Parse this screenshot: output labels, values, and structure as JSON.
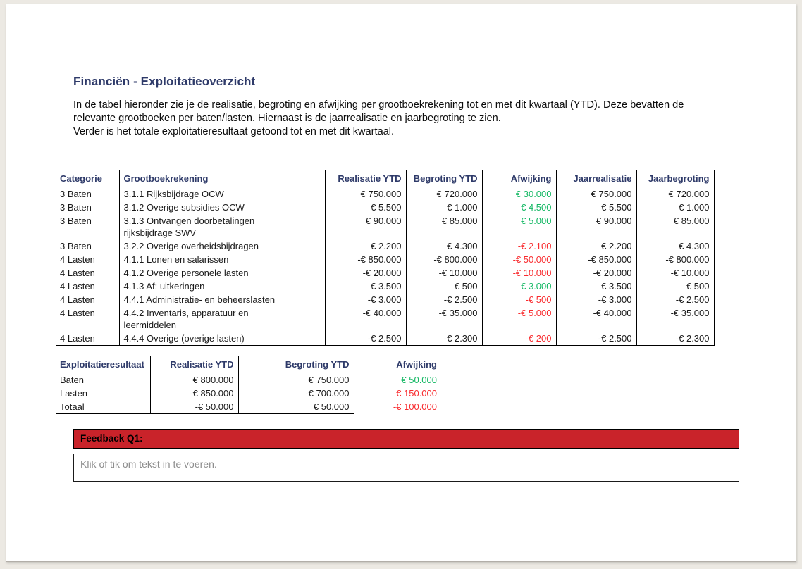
{
  "page": {
    "title": "Financiën - Exploitatieoverzicht",
    "intro_paragraph_1": "In de tabel hieronder zie je de realisatie, begroting en afwijking per grootboekrekening tot en met dit kwartaal (YTD). Deze bevatten de relevante grootboeken per baten/lasten. Hiernaast is de jaarrealisatie en jaarbegroting te zien.",
    "intro_paragraph_2": "Verder is het totale exploitatieresultaat getoond tot en met dit kwartaal."
  },
  "colors": {
    "navy": "#2e3a69",
    "pos": "#14b864",
    "neg": "#f92b2e",
    "banner": "#c9232a"
  },
  "grootboek_table": {
    "headers": [
      "Categorie",
      "Grootboekrekening",
      "Realisatie YTD",
      "Begroting YTD",
      "Afwijking",
      "Jaarrealisatie",
      "Jaarbegroting"
    ],
    "align": [
      "l",
      "l",
      "r",
      "r",
      "r",
      "r",
      "r"
    ],
    "afwijking_col": 4,
    "rows": [
      [
        "3 Baten",
        "3.1.1 Rijksbijdrage OCW",
        "€ 750.000",
        "€ 720.000",
        "€ 30.000",
        "€ 750.000",
        "€ 720.000"
      ],
      [
        "3 Baten",
        "3.1.2 Overige subsidies OCW",
        "€ 5.500",
        "€ 1.000",
        "€ 4.500",
        "€ 5.500",
        "€ 1.000"
      ],
      [
        "3 Baten",
        "3.1.3 Ontvangen doorbetalingen\nrijksbijdrage SWV",
        "€ 90.000",
        "€ 85.000",
        "€ 5.000",
        "€ 90.000",
        "€ 85.000"
      ],
      [
        "3 Baten",
        "3.2.2 Overige overheidsbijdragen",
        "€ 2.200",
        "€ 4.300",
        "-€ 2.100",
        "€ 2.200",
        "€ 4.300"
      ],
      [
        "4 Lasten",
        "4.1.1 Lonen en salarissen",
        "-€ 850.000",
        "-€ 800.000",
        "-€ 50.000",
        "-€ 850.000",
        "-€ 800.000"
      ],
      [
        "4 Lasten",
        "4.1.2 Overige personele lasten",
        "-€ 20.000",
        "-€ 10.000",
        "-€ 10.000",
        "-€ 20.000",
        "-€ 10.000"
      ],
      [
        "4 Lasten",
        "4.1.3 Af: uitkeringen",
        "€ 3.500",
        "€ 500",
        "€ 3.000",
        "€ 3.500",
        "€ 500"
      ],
      [
        "4 Lasten",
        "4.4.1 Administratie- en beheerslasten",
        "-€ 3.000",
        "-€ 2.500",
        "-€ 500",
        "-€ 3.000",
        "-€ 2.500"
      ],
      [
        "4 Lasten",
        "4.4.2 Inventaris, apparatuur en\nleermiddelen",
        "-€ 40.000",
        "-€ 35.000",
        "-€ 5.000",
        "-€ 40.000",
        "-€ 35.000"
      ],
      [
        "4 Lasten",
        "4.4.4 Overige (overige lasten)",
        "-€ 2.500",
        "-€ 2.300",
        "-€ 200",
        "-€ 2.500",
        "-€ 2.300"
      ]
    ]
  },
  "resultaat_table": {
    "headers": [
      "Exploitatieresultaat",
      "Realisatie YTD",
      "Begroting YTD",
      "Afwijking"
    ],
    "align": [
      "l",
      "r",
      "r",
      "r"
    ],
    "afwijking_col": 3,
    "rows": [
      [
        "Baten",
        "€ 800.000",
        "€ 750.000",
        "€ 50.000"
      ],
      [
        "Lasten",
        "-€ 850.000",
        "-€ 700.000",
        "-€ 150.000"
      ],
      [
        "Totaal",
        "-€ 50.000",
        "€ 50.000",
        "-€ 100.000"
      ]
    ]
  },
  "feedback": {
    "label": "Feedback Q1:",
    "placeholder": "Klik of tik om tekst in te voeren."
  }
}
